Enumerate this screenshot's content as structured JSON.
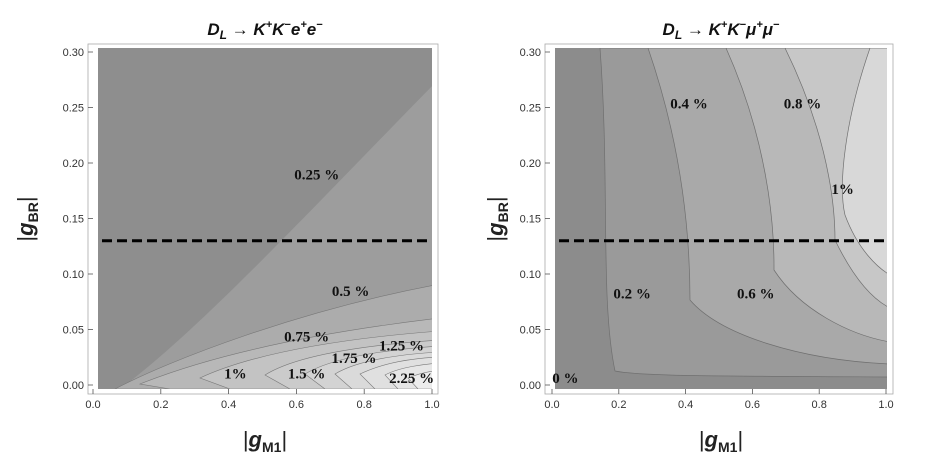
{
  "chart_data": [
    {
      "type": "contour",
      "title": "D_L → K⁺K⁻e⁺e⁻",
      "title_parts": {
        "base": "D",
        "sub": "L",
        "arrow": " → ",
        "k1": "K",
        "k1_sup": "+",
        "k2": "K",
        "k2_sup": "−",
        "l1": "e",
        "l1_sup": "+",
        "l2": "e",
        "l2_sup": "−"
      },
      "xlabel": "|gM1|",
      "xlabel_parts": {
        "pre": "|",
        "base": "g",
        "sub": "M1",
        "post": "|"
      },
      "ylabel": "|gBR|",
      "ylabel_parts": {
        "pre": "|",
        "base": "g",
        "sub": "BR",
        "post": "|"
      },
      "xlim": [
        0.0,
        1.0
      ],
      "ylim": [
        0.0,
        0.3
      ],
      "xticks": [
        "0.0",
        "0.2",
        "0.4",
        "0.6",
        "0.8",
        "1.0"
      ],
      "yticks": [
        "0.00",
        "0.05",
        "0.10",
        "0.15",
        "0.20",
        "0.25",
        "0.30"
      ],
      "reference_line_y": 0.13,
      "contour_labels": [
        {
          "text": "0.25 %",
          "x": 0.66,
          "y": 0.185
        },
        {
          "text": "0.5 %",
          "x": 0.76,
          "y": 0.08
        },
        {
          "text": "0.75 %",
          "x": 0.63,
          "y": 0.039
        },
        {
          "text": "1.25 %",
          "x": 0.91,
          "y": 0.031
        },
        {
          "text": "1.75 %",
          "x": 0.77,
          "y": 0.02
        },
        {
          "text": "1%",
          "x": 0.42,
          "y": 0.006
        },
        {
          "text": "1.5 %",
          "x": 0.63,
          "y": 0.006
        },
        {
          "text": "2.25 %",
          "x": 0.94,
          "y": 0.002
        }
      ]
    },
    {
      "type": "contour",
      "title": "D_L → K⁺K⁻μ⁺μ⁻",
      "title_parts": {
        "base": "D",
        "sub": "L",
        "arrow": " → ",
        "k1": "K",
        "k1_sup": "+",
        "k2": "K",
        "k2_sup": "−",
        "l1": "μ",
        "l1_sup": "+",
        "l2": "μ",
        "l2_sup": "−"
      },
      "xlabel": "|gM1|",
      "xlabel_parts": {
        "pre": "|",
        "base": "g",
        "sub": "M1",
        "post": "|"
      },
      "ylabel": "|gBR|",
      "ylabel_parts": {
        "pre": "|",
        "base": "g",
        "sub": "BR",
        "post": "|"
      },
      "xlim": [
        0.0,
        1.0
      ],
      "ylim": [
        0.0,
        0.3
      ],
      "xticks": [
        "0.0",
        "0.2",
        "0.4",
        "0.6",
        "0.8",
        "1.0"
      ],
      "yticks": [
        "0.00",
        "0.05",
        "0.10",
        "0.15",
        "0.20",
        "0.25",
        "0.30"
      ],
      "reference_line_y": 0.13,
      "contour_labels": [
        {
          "text": "0.4 %",
          "x": 0.41,
          "y": 0.249
        },
        {
          "text": "0.8 %",
          "x": 0.75,
          "y": 0.249
        },
        {
          "text": "1%",
          "x": 0.87,
          "y": 0.172
        },
        {
          "text": "0.2 %",
          "x": 0.24,
          "y": 0.078
        },
        {
          "text": "0.6 %",
          "x": 0.61,
          "y": 0.078
        },
        {
          "text": "0 %",
          "x": 0.04,
          "y": 0.002
        }
      ]
    }
  ]
}
